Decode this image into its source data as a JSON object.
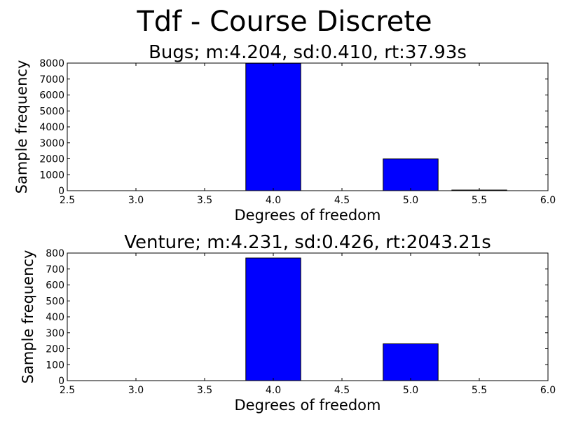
{
  "figure_title": "Tdf - Course Discrete",
  "colors": {
    "bar_fill": "#0000ff",
    "axis": "#000000",
    "background": "#ffffff"
  },
  "chart_data": [
    {
      "type": "bar",
      "title": "Bugs;  m:4.204,  sd:0.410,  rt:37.93s",
      "xlabel": "Degrees of freedom",
      "ylabel": "Sample frequency",
      "xlim": [
        2.5,
        6.0
      ],
      "ylim": [
        0,
        8000
      ],
      "x_ticks": [
        2.5,
        3.0,
        3.5,
        4.0,
        4.5,
        5.0,
        5.5,
        6.0
      ],
      "x_tick_labels": [
        "2.5",
        "3.0",
        "3.5",
        "4.0",
        "4.5",
        "5.0",
        "5.5",
        "6.0"
      ],
      "y_ticks": [
        0,
        1000,
        2000,
        3000,
        4000,
        5000,
        6000,
        7000,
        8000
      ],
      "y_tick_labels": [
        "0",
        "1000",
        "2000",
        "3000",
        "4000",
        "5000",
        "6000",
        "7000",
        "8000"
      ],
      "bar_width": 0.4,
      "bars": [
        {
          "x": 3.0,
          "value": 0
        },
        {
          "x": 3.5,
          "value": 0
        },
        {
          "x": 4.0,
          "value": 7990
        },
        {
          "x": 4.5,
          "value": 0
        },
        {
          "x": 5.0,
          "value": 1990
        },
        {
          "x": 5.5,
          "value": 40
        }
      ]
    },
    {
      "type": "bar",
      "title": "Venture;  m:4.231,  sd:0.426,  rt:2043.21s",
      "xlabel": "Degrees of freedom",
      "ylabel": "Sample frequency",
      "xlim": [
        2.5,
        6.0
      ],
      "ylim": [
        0,
        800
      ],
      "x_ticks": [
        2.5,
        3.0,
        3.5,
        4.0,
        4.5,
        5.0,
        5.5,
        6.0
      ],
      "x_tick_labels": [
        "2.5",
        "3.0",
        "3.5",
        "4.0",
        "4.5",
        "5.0",
        "5.5",
        "6.0"
      ],
      "y_ticks": [
        0,
        100,
        200,
        300,
        400,
        500,
        600,
        700,
        800
      ],
      "y_tick_labels": [
        "0",
        "100",
        "200",
        "300",
        "400",
        "500",
        "600",
        "700",
        "800"
      ],
      "bar_width": 0.4,
      "bars": [
        {
          "x": 3.0,
          "value": 0
        },
        {
          "x": 3.5,
          "value": 0
        },
        {
          "x": 4.0,
          "value": 769
        },
        {
          "x": 4.5,
          "value": 0
        },
        {
          "x": 5.0,
          "value": 231
        },
        {
          "x": 5.5,
          "value": 0
        }
      ]
    }
  ]
}
